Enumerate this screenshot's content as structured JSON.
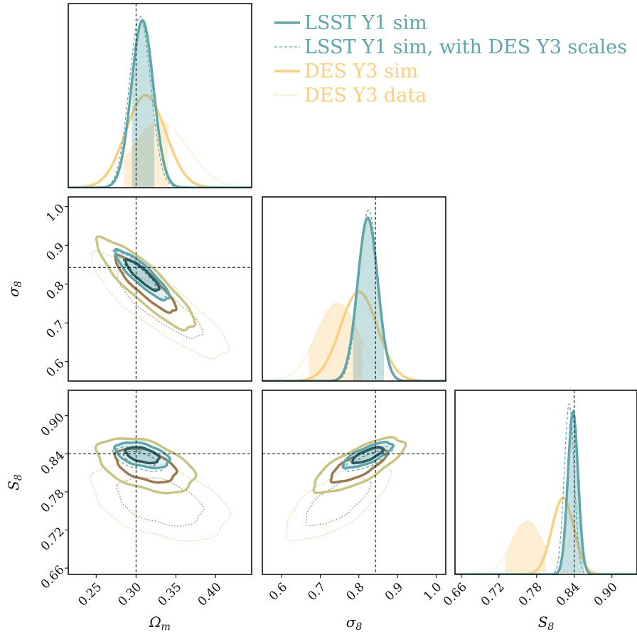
{
  "chart_data": {
    "type": "corner",
    "parameters": [
      {
        "key": "omega_m",
        "label": "Ωm",
        "label_main": "Ω",
        "label_sub": "m",
        "range": [
          0.215,
          0.445
        ],
        "ticks": [
          0.25,
          0.3,
          0.35,
          0.4
        ],
        "tick_labels": [
          "0.25",
          "0.30",
          "0.35",
          "0.40"
        ],
        "fiducial": 0.3
      },
      {
        "key": "sigma_8",
        "label": "σ8",
        "label_main": "σ",
        "label_sub": "8",
        "range": [
          0.55,
          1.025
        ],
        "ticks": [
          0.6,
          0.7,
          0.8,
          0.9,
          1.0
        ],
        "tick_labels": [
          "0.6",
          "0.7",
          "0.8",
          "0.9",
          "1.0"
        ],
        "fiducial": 0.843
      },
      {
        "key": "S_8",
        "label": "S8",
        "label_main": "S",
        "label_sub": "8",
        "range": [
          0.65,
          0.94
        ],
        "ticks": [
          0.66,
          0.72,
          0.78,
          0.84,
          0.9
        ],
        "tick_labels": [
          "0.66",
          "0.72",
          "0.78",
          "0.84",
          "0.90"
        ],
        "fiducial": 0.84
      }
    ],
    "series": [
      {
        "name": "LSST Y1 sim",
        "style": "solid-thick",
        "color": "#5fa6ab",
        "fill": true,
        "mean": [
          0.308,
          0.823,
          0.838
        ],
        "sd": [
          0.0138,
          0.0262,
          0.0082
        ],
        "interval68": [
          [
            0.295,
            0.323
          ],
          [
            0.785,
            0.865
          ],
          [
            0.81,
            0.855
          ]
        ],
        "corr": {
          "omega_m-sigma_8": -0.88,
          "omega_m-S_8": -0.45,
          "sigma_8-S_8": 0.75
        }
      },
      {
        "name": "LSST Y1 sim, with DES Y3 scales",
        "style": "dashed-thin",
        "color": "#5fa6ab",
        "fill": false,
        "mean": [
          0.305,
          0.825,
          0.832
        ],
        "sd": [
          0.0135,
          0.025,
          0.0078
        ],
        "interval68": [
          [
            0.293,
            0.318
          ],
          [
            0.79,
            0.86
          ],
          [
            0.815,
            0.845
          ]
        ],
        "corr": {
          "omega_m-sigma_8": -0.9,
          "omega_m-S_8": -0.5,
          "sigma_8-S_8": 0.78
        }
      },
      {
        "name": "DES Y3 sim",
        "style": "solid-thick",
        "color": "#fccf80",
        "fill": false,
        "mean": [
          0.312,
          0.8,
          0.822
        ],
        "sd": [
          0.025,
          0.048,
          0.0175
        ],
        "interval68": [
          [
            0.285,
            0.335
          ],
          [
            0.76,
            0.84
          ],
          [
            0.8,
            0.84
          ]
        ],
        "corr": {
          "omega_m-sigma_8": -0.88,
          "omega_m-S_8": -0.45,
          "sigma_8-S_8": 0.75
        }
      },
      {
        "name": "DES Y3 data",
        "style": "dotted-thin",
        "color": "#fccf80",
        "fill": true,
        "mean": [
          0.33,
          0.745,
          0.765
        ],
        "sd": [
          0.035,
          0.055,
          0.025
        ],
        "interval68": [
          [
            0.285,
            0.34
          ],
          [
            0.67,
            0.81
          ],
          [
            0.73,
            0.795
          ]
        ],
        "corr": {
          "omega_m-sigma_8": -0.85,
          "omega_m-S_8": -0.4,
          "sigma_8-S_8": 0.7
        }
      }
    ],
    "contour_colors": {
      "LSST Y1 sim": [
        "#2c5a5e",
        "#5fa6ab"
      ],
      "LSST Y1 sim, with DES Y3 scales": [
        "#2c5a5e",
        "#5fa6ab"
      ],
      "DES Y3 sim": [
        "#9a7a4e",
        "#c8c584"
      ],
      "DES Y3 data": [
        "#a8825a",
        "#d6cc90"
      ]
    },
    "legend": {
      "placement": "top-right"
    },
    "grid": false
  }
}
